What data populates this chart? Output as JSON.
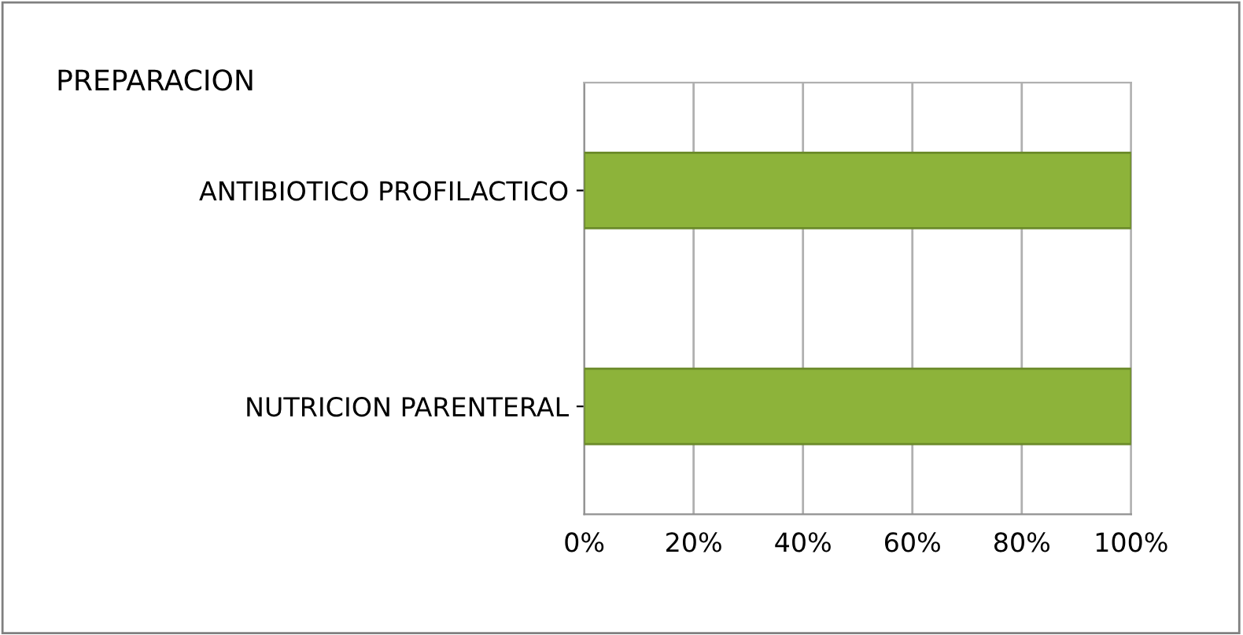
{
  "chart_data": {
    "type": "bar",
    "orientation": "horizontal",
    "title": "PREPARACION",
    "categories": [
      "ANTIBIOTICO PROFILACTICO",
      "NUTRICION PARENTERAL"
    ],
    "values": [
      100,
      100
    ],
    "color": "#8db33a",
    "xlim": [
      0,
      100
    ],
    "xticks": [
      {
        "value": 0,
        "label": "0%"
      },
      {
        "value": 20,
        "label": "20%"
      },
      {
        "value": 40,
        "label": "40%"
      },
      {
        "value": 60,
        "label": "60%"
      },
      {
        "value": 80,
        "label": "80%"
      },
      {
        "value": 100,
        "label": "100%"
      }
    ],
    "grid": "x",
    "legend": false
  }
}
